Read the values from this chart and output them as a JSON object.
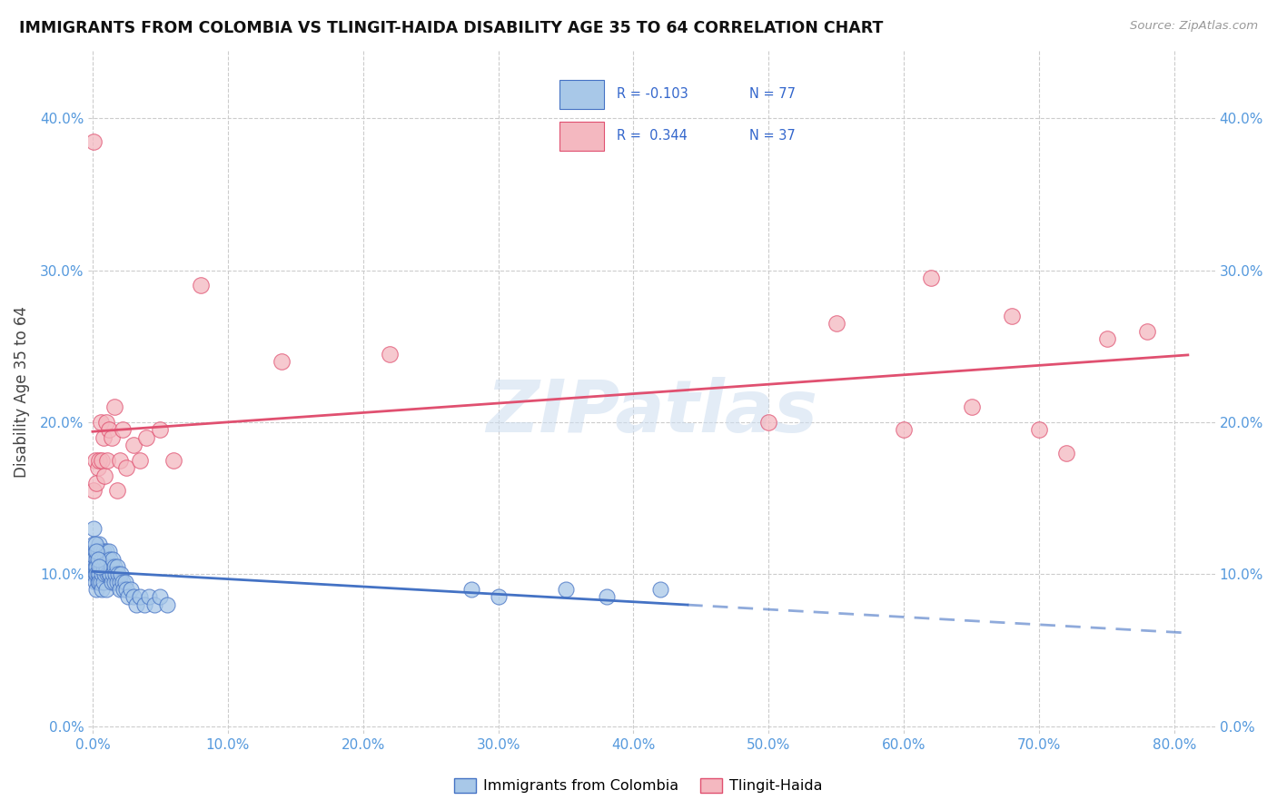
{
  "title": "IMMIGRANTS FROM COLOMBIA VS TLINGIT-HAIDA DISABILITY AGE 35 TO 64 CORRELATION CHART",
  "source": "Source: ZipAtlas.com",
  "ylabel": "Disability Age 35 to 64",
  "legend_label1": "Immigrants from Colombia",
  "legend_label2": "Tlingit-Haida",
  "R1": -0.103,
  "N1": 77,
  "R2": 0.344,
  "N2": 37,
  "color1": "#a8c8e8",
  "color2": "#f4b8c0",
  "color1_line": "#4472c4",
  "color2_line": "#e05070",
  "xlim": [
    -0.003,
    0.83
  ],
  "ylim": [
    -0.005,
    0.445
  ],
  "xticks": [
    0.0,
    0.1,
    0.2,
    0.3,
    0.4,
    0.5,
    0.6,
    0.7,
    0.8
  ],
  "yticks": [
    0.0,
    0.1,
    0.2,
    0.3,
    0.4
  ],
  "colombia_x": [
    0.001,
    0.001,
    0.001,
    0.001,
    0.001,
    0.002,
    0.002,
    0.002,
    0.002,
    0.003,
    0.003,
    0.003,
    0.003,
    0.004,
    0.004,
    0.004,
    0.005,
    0.005,
    0.005,
    0.005,
    0.006,
    0.006,
    0.006,
    0.007,
    0.007,
    0.007,
    0.008,
    0.008,
    0.008,
    0.009,
    0.009,
    0.01,
    0.01,
    0.01,
    0.011,
    0.011,
    0.012,
    0.012,
    0.013,
    0.013,
    0.014,
    0.014,
    0.015,
    0.015,
    0.016,
    0.016,
    0.017,
    0.018,
    0.018,
    0.019,
    0.02,
    0.02,
    0.021,
    0.022,
    0.023,
    0.024,
    0.025,
    0.026,
    0.028,
    0.03,
    0.032,
    0.035,
    0.038,
    0.042,
    0.046,
    0.05,
    0.055,
    0.28,
    0.3,
    0.35,
    0.38,
    0.42,
    0.001,
    0.002,
    0.003,
    0.004,
    0.005
  ],
  "colombia_y": [
    0.115,
    0.12,
    0.11,
    0.1,
    0.105,
    0.115,
    0.1,
    0.105,
    0.095,
    0.11,
    0.105,
    0.1,
    0.09,
    0.115,
    0.1,
    0.095,
    0.12,
    0.11,
    0.1,
    0.095,
    0.115,
    0.105,
    0.095,
    0.11,
    0.1,
    0.09,
    0.115,
    0.105,
    0.095,
    0.11,
    0.1,
    0.115,
    0.105,
    0.09,
    0.11,
    0.1,
    0.115,
    0.1,
    0.11,
    0.1,
    0.105,
    0.095,
    0.11,
    0.1,
    0.105,
    0.095,
    0.1,
    0.105,
    0.095,
    0.1,
    0.095,
    0.09,
    0.1,
    0.095,
    0.09,
    0.095,
    0.09,
    0.085,
    0.09,
    0.085,
    0.08,
    0.085,
    0.08,
    0.085,
    0.08,
    0.085,
    0.08,
    0.09,
    0.085,
    0.09,
    0.085,
    0.09,
    0.13,
    0.12,
    0.115,
    0.11,
    0.105
  ],
  "tlingit_x": [
    0.001,
    0.001,
    0.002,
    0.003,
    0.004,
    0.005,
    0.006,
    0.007,
    0.008,
    0.009,
    0.01,
    0.011,
    0.012,
    0.014,
    0.016,
    0.018,
    0.02,
    0.022,
    0.025,
    0.03,
    0.035,
    0.04,
    0.05,
    0.06,
    0.08,
    0.14,
    0.22,
    0.5,
    0.55,
    0.6,
    0.62,
    0.65,
    0.68,
    0.7,
    0.72,
    0.75,
    0.78
  ],
  "tlingit_y": [
    0.385,
    0.155,
    0.175,
    0.16,
    0.17,
    0.175,
    0.2,
    0.175,
    0.19,
    0.165,
    0.2,
    0.175,
    0.195,
    0.19,
    0.21,
    0.155,
    0.175,
    0.195,
    0.17,
    0.185,
    0.175,
    0.19,
    0.195,
    0.175,
    0.29,
    0.24,
    0.245,
    0.2,
    0.265,
    0.195,
    0.295,
    0.21,
    0.27,
    0.195,
    0.18,
    0.255,
    0.26
  ],
  "watermark": "ZIPatlas",
  "figsize": [
    14.06,
    8.92
  ],
  "dpi": 100
}
